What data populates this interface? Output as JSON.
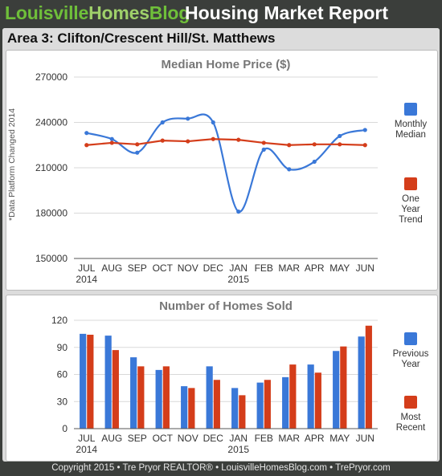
{
  "header": {
    "brand_part1": "Louisville",
    "brand_part2": "Homes",
    "brand_part3": "Blog",
    "report_title": "Housing Market Report"
  },
  "area_title": "Area 3: Clifton/Crescent Hill/St. Matthews",
  "side_note": "*Data Platform Changed 2014",
  "footer": "Copyright 2015 • Tre Pryor REALTOR® • LouisvilleHomesBlog.com • TrePryor.com",
  "colors": {
    "blue": "#3a78d8",
    "red": "#d43d1a",
    "grid": "#d9d9d9",
    "text": "#333333",
    "title": "#777777"
  },
  "chart_data": [
    {
      "type": "line",
      "title": "Median Home Price ($)",
      "categories": [
        "JUL",
        "AUG",
        "SEP",
        "OCT",
        "NOV",
        "DEC",
        "JAN",
        "FEB",
        "MAR",
        "APR",
        "MAY",
        "JUN"
      ],
      "year_labels": [
        "2014",
        "",
        "",
        "",
        "",
        "",
        "2015",
        "",
        "",
        "",
        "",
        ""
      ],
      "y_ticks": [
        "150000",
        "180000",
        "210000",
        "240000",
        "270000"
      ],
      "ylim": [
        150000,
        270000
      ],
      "grid": true,
      "legend_position": "right",
      "series": [
        {
          "name": "Monthly Median",
          "legend_lines": [
            "Monthly",
            "Median"
          ],
          "color": "#3a78d8",
          "values": [
            233000,
            229000,
            220000,
            240000,
            242500,
            240000,
            181000,
            222000,
            209000,
            214000,
            231000,
            235000
          ]
        },
        {
          "name": "One Year Trend",
          "legend_lines": [
            "One",
            "Year",
            "Trend"
          ],
          "color": "#d43d1a",
          "values": [
            225000,
            226500,
            225500,
            228000,
            227500,
            229000,
            228500,
            226500,
            225000,
            225500,
            225500,
            225000
          ]
        }
      ]
    },
    {
      "type": "bar",
      "title": "Number of Homes Sold",
      "categories": [
        "JUL",
        "AUG",
        "SEP",
        "OCT",
        "NOV",
        "DEC",
        "JAN",
        "FEB",
        "MAR",
        "APR",
        "MAY",
        "JUN"
      ],
      "year_labels": [
        "2014",
        "",
        "",
        "",
        "",
        "",
        "2015",
        "",
        "",
        "",
        "",
        ""
      ],
      "y_ticks": [
        "0",
        "30",
        "60",
        "90",
        "120"
      ],
      "ylim": [
        0,
        120
      ],
      "grid": true,
      "legend_position": "right",
      "series": [
        {
          "name": "Previous Year",
          "legend_lines": [
            "Previous",
            "Year"
          ],
          "color": "#3a78d8",
          "values": [
            105,
            103,
            79,
            65,
            47,
            69,
            45,
            51,
            57,
            71,
            86,
            102
          ]
        },
        {
          "name": "Most Recent",
          "legend_lines": [
            "Most",
            "Recent"
          ],
          "color": "#d43d1a",
          "values": [
            104,
            87,
            69,
            69,
            45,
            54,
            37,
            54,
            71,
            62,
            91,
            114
          ]
        }
      ]
    }
  ]
}
